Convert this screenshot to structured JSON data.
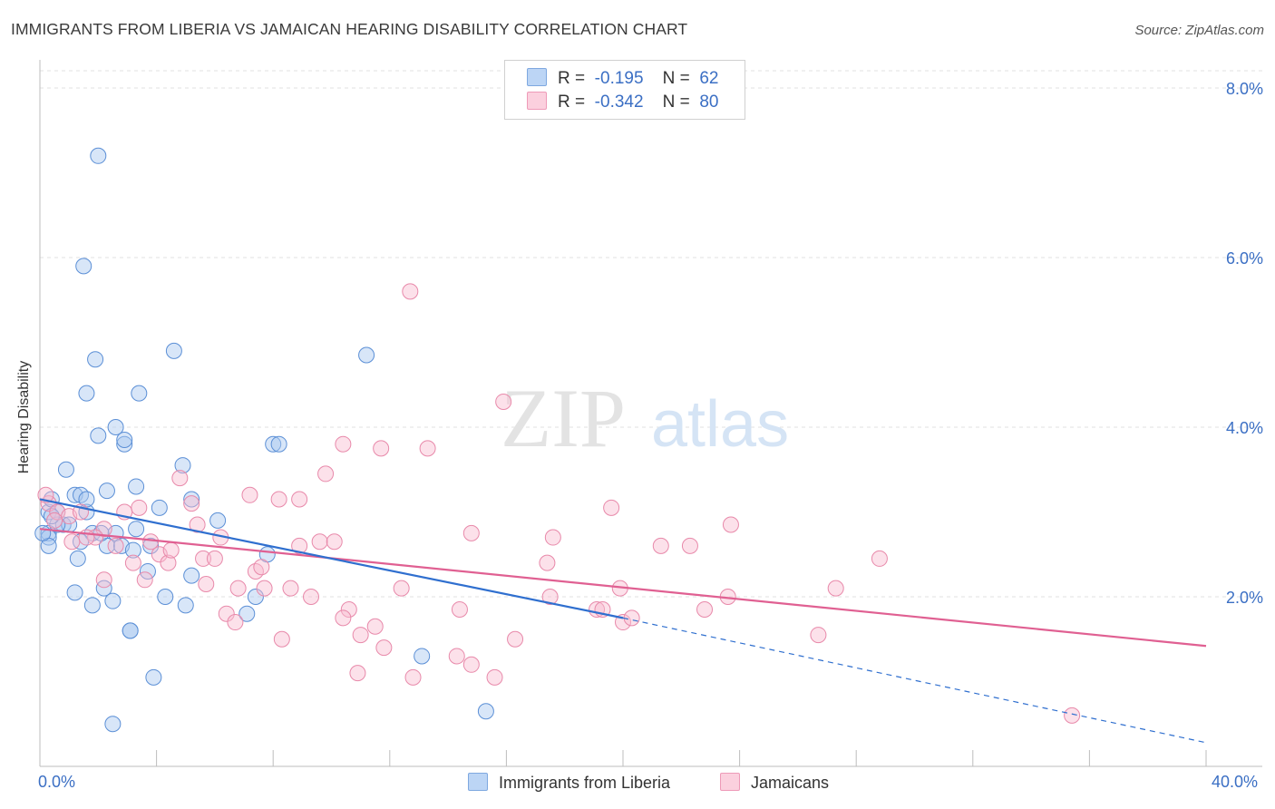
{
  "title": "IMMIGRANTS FROM LIBERIA VS JAMAICAN HEARING DISABILITY CORRELATION CHART",
  "source": "Source: ZipAtlas.com",
  "watermark": {
    "zip": "ZIP",
    "atlas": "atlas"
  },
  "legend_top": [
    {
      "r_label": "R =",
      "r_value": "-0.195",
      "n_label": "N =",
      "n_value": "62",
      "color": "#a8c8f0"
    },
    {
      "r_label": "R =",
      "r_value": "-0.342",
      "n_label": "N =",
      "n_value": "80",
      "color": "#f8bcd0"
    }
  ],
  "legend_bottom": [
    "Immigrants from Liberia",
    "Jamaicans"
  ],
  "x_min_label": "0.0%",
  "x_max_label": "40.0%",
  "chart_data": {
    "type": "scatter",
    "title": "IMMIGRANTS FROM LIBERIA VS JAMAICAN HEARING DISABILITY CORRELATION CHART",
    "xlabel": "",
    "ylabel": "Hearing Disability",
    "xlim": [
      0,
      40
    ],
    "ylim": [
      0,
      8
    ],
    "y_ticks": [
      2,
      4,
      6,
      8
    ],
    "y_tick_labels": [
      "2.0%",
      "4.0%",
      "6.0%",
      "8.0%"
    ],
    "x_tick_labels": [
      "0.0%",
      "40.0%"
    ],
    "grid": true,
    "legend_position": "top-center",
    "series": [
      {
        "name": "Immigrants from Liberia",
        "color": "#5b8fd6",
        "fill": "#a8c8f0",
        "line_color": "#2f6fcf",
        "trend": {
          "x0": 0,
          "y0": 3.15,
          "x1": 20,
          "y1": 1.75,
          "dashed_to_x": 40,
          "dashed_to_y": 0.28
        },
        "points": [
          [
            2.0,
            7.2
          ],
          [
            1.5,
            5.9
          ],
          [
            1.9,
            4.8
          ],
          [
            4.6,
            4.9
          ],
          [
            11.2,
            4.85
          ],
          [
            1.6,
            4.4
          ],
          [
            3.4,
            4.4
          ],
          [
            2.0,
            3.9
          ],
          [
            2.6,
            4.0
          ],
          [
            2.9,
            3.8
          ],
          [
            2.9,
            3.85
          ],
          [
            8.0,
            3.8
          ],
          [
            8.2,
            3.8
          ],
          [
            0.9,
            3.5
          ],
          [
            4.9,
            3.55
          ],
          [
            1.2,
            3.2
          ],
          [
            1.4,
            3.2
          ],
          [
            2.3,
            3.25
          ],
          [
            3.3,
            3.3
          ],
          [
            5.2,
            3.15
          ],
          [
            4.1,
            3.05
          ],
          [
            0.3,
            3.0
          ],
          [
            0.6,
            3.0
          ],
          [
            0.8,
            2.85
          ],
          [
            1.0,
            2.85
          ],
          [
            1.6,
            3.0
          ],
          [
            0.3,
            2.75
          ],
          [
            0.3,
            2.7
          ],
          [
            0.6,
            2.85
          ],
          [
            1.8,
            2.75
          ],
          [
            2.3,
            2.6
          ],
          [
            3.3,
            2.8
          ],
          [
            1.4,
            2.65
          ],
          [
            2.6,
            2.75
          ],
          [
            3.8,
            2.6
          ],
          [
            0.3,
            2.6
          ],
          [
            6.1,
            2.9
          ],
          [
            7.8,
            2.5
          ],
          [
            1.3,
            2.45
          ],
          [
            2.8,
            2.6
          ],
          [
            3.7,
            2.3
          ],
          [
            1.2,
            2.05
          ],
          [
            2.2,
            2.1
          ],
          [
            5.2,
            2.25
          ],
          [
            2.5,
            1.95
          ],
          [
            1.8,
            1.9
          ],
          [
            4.3,
            2.0
          ],
          [
            5.0,
            1.9
          ],
          [
            7.4,
            2.0
          ],
          [
            7.1,
            1.8
          ],
          [
            3.1,
            1.6
          ],
          [
            3.1,
            1.6
          ],
          [
            3.9,
            1.05
          ],
          [
            13.1,
            1.3
          ],
          [
            2.5,
            0.5
          ],
          [
            15.3,
            0.65
          ],
          [
            0.1,
            2.75
          ],
          [
            0.4,
            2.95
          ],
          [
            1.6,
            3.15
          ],
          [
            2.1,
            2.75
          ],
          [
            3.2,
            2.55
          ],
          [
            0.4,
            3.15
          ]
        ]
      },
      {
        "name": "Jamaicans",
        "color": "#e889aa",
        "fill": "#f8bcd0",
        "line_color": "#e06092",
        "trend": {
          "x0": 0,
          "y0": 2.8,
          "x1": 40,
          "y1": 1.42
        },
        "points": [
          [
            12.7,
            5.6
          ],
          [
            15.9,
            4.3
          ],
          [
            10.4,
            3.8
          ],
          [
            11.7,
            3.75
          ],
          [
            13.3,
            3.75
          ],
          [
            9.8,
            3.45
          ],
          [
            4.8,
            3.4
          ],
          [
            7.2,
            3.2
          ],
          [
            8.2,
            3.15
          ],
          [
            8.9,
            3.15
          ],
          [
            5.2,
            3.1
          ],
          [
            3.4,
            3.05
          ],
          [
            2.9,
            3.0
          ],
          [
            0.3,
            3.1
          ],
          [
            0.6,
            3.0
          ],
          [
            1.0,
            2.95
          ],
          [
            1.4,
            3.0
          ],
          [
            19.6,
            3.05
          ],
          [
            23.7,
            2.85
          ],
          [
            5.4,
            2.85
          ],
          [
            2.2,
            2.8
          ],
          [
            1.9,
            2.7
          ],
          [
            6.2,
            2.7
          ],
          [
            9.6,
            2.65
          ],
          [
            10.1,
            2.65
          ],
          [
            14.8,
            2.75
          ],
          [
            17.6,
            2.7
          ],
          [
            21.3,
            2.6
          ],
          [
            1.6,
            2.7
          ],
          [
            2.6,
            2.6
          ],
          [
            3.8,
            2.65
          ],
          [
            4.1,
            2.5
          ],
          [
            3.2,
            2.4
          ],
          [
            5.6,
            2.45
          ],
          [
            6.0,
            2.45
          ],
          [
            8.9,
            2.6
          ],
          [
            17.4,
            2.4
          ],
          [
            22.3,
            2.6
          ],
          [
            28.8,
            2.45
          ],
          [
            4.4,
            2.4
          ],
          [
            3.6,
            2.2
          ],
          [
            7.4,
            2.3
          ],
          [
            2.2,
            2.2
          ],
          [
            5.7,
            2.15
          ],
          [
            6.8,
            2.1
          ],
          [
            7.7,
            2.1
          ],
          [
            8.6,
            2.1
          ],
          [
            12.4,
            2.1
          ],
          [
            19.9,
            2.1
          ],
          [
            27.3,
            2.1
          ],
          [
            9.3,
            2.0
          ],
          [
            17.5,
            2.0
          ],
          [
            23.6,
            2.0
          ],
          [
            10.6,
            1.85
          ],
          [
            14.4,
            1.85
          ],
          [
            19.1,
            1.85
          ],
          [
            19.3,
            1.85
          ],
          [
            22.8,
            1.85
          ],
          [
            6.4,
            1.8
          ],
          [
            6.7,
            1.7
          ],
          [
            10.4,
            1.75
          ],
          [
            20.0,
            1.7
          ],
          [
            20.3,
            1.75
          ],
          [
            11.0,
            1.55
          ],
          [
            11.5,
            1.65
          ],
          [
            8.3,
            1.5
          ],
          [
            16.3,
            1.5
          ],
          [
            26.7,
            1.55
          ],
          [
            11.8,
            1.4
          ],
          [
            14.3,
            1.3
          ],
          [
            14.8,
            1.2
          ],
          [
            10.9,
            1.1
          ],
          [
            12.8,
            1.05
          ],
          [
            15.6,
            1.05
          ],
          [
            35.4,
            0.6
          ],
          [
            0.2,
            3.2
          ],
          [
            0.5,
            2.9
          ],
          [
            1.1,
            2.65
          ],
          [
            4.5,
            2.55
          ],
          [
            7.6,
            2.35
          ]
        ]
      }
    ]
  }
}
